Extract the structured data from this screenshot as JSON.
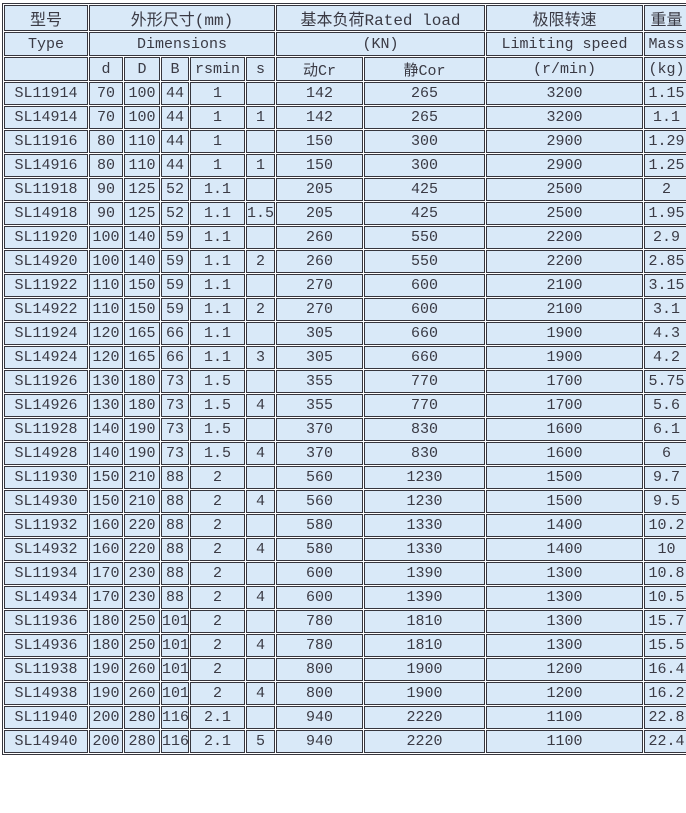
{
  "colors": {
    "page-bg": "#ffffff",
    "cell-bg": "#d9e9f8",
    "grid": "#36363e",
    "text": "#3a3a44"
  },
  "table": {
    "header": {
      "row1": [
        "型号",
        "外形尺寸(mm)",
        "基本负荷Rated load",
        "极限转速",
        "重量"
      ],
      "row2": [
        "Type",
        "Dimensions",
        "(KN)",
        "Limiting speed",
        "Mass"
      ],
      "row3": [
        "",
        "d",
        "D",
        "B",
        "rsmin",
        "s",
        "动Cr",
        "静Cor",
        "(r/min)",
        "(kg)"
      ]
    },
    "cell_names": [
      "model",
      "d",
      "D",
      "B",
      "rsmin",
      "s",
      "dynamic-load-cr",
      "static-load-cor",
      "limiting-speed",
      "mass"
    ],
    "rows": [
      [
        "SL11914",
        "70",
        "100",
        "44",
        "1",
        "",
        "142",
        "265",
        "3200",
        "1.15"
      ],
      [
        "SL14914",
        "70",
        "100",
        "44",
        "1",
        "1",
        "142",
        "265",
        "3200",
        "1.1"
      ],
      [
        "SL11916",
        "80",
        "110",
        "44",
        "1",
        "",
        "150",
        "300",
        "2900",
        "1.29"
      ],
      [
        "SL14916",
        "80",
        "110",
        "44",
        "1",
        "1",
        "150",
        "300",
        "2900",
        "1.25"
      ],
      [
        "SL11918",
        "90",
        "125",
        "52",
        "1.1",
        "",
        "205",
        "425",
        "2500",
        "2"
      ],
      [
        "SL14918",
        "90",
        "125",
        "52",
        "1.1",
        "1.5",
        "205",
        "425",
        "2500",
        "1.95"
      ],
      [
        "SL11920",
        "100",
        "140",
        "59",
        "1.1",
        "",
        "260",
        "550",
        "2200",
        "2.9"
      ],
      [
        "SL14920",
        "100",
        "140",
        "59",
        "1.1",
        "2",
        "260",
        "550",
        "2200",
        "2.85"
      ],
      [
        "SL11922",
        "110",
        "150",
        "59",
        "1.1",
        "",
        "270",
        "600",
        "2100",
        "3.15"
      ],
      [
        "SL14922",
        "110",
        "150",
        "59",
        "1.1",
        "2",
        "270",
        "600",
        "2100",
        "3.1"
      ],
      [
        "SL11924",
        "120",
        "165",
        "66",
        "1.1",
        "",
        "305",
        "660",
        "1900",
        "4.3"
      ],
      [
        "SL14924",
        "120",
        "165",
        "66",
        "1.1",
        "3",
        "305",
        "660",
        "1900",
        "4.2"
      ],
      [
        "SL11926",
        "130",
        "180",
        "73",
        "1.5",
        "",
        "355",
        "770",
        "1700",
        "5.75"
      ],
      [
        "SL14926",
        "130",
        "180",
        "73",
        "1.5",
        "4",
        "355",
        "770",
        "1700",
        "5.6"
      ],
      [
        "SL11928",
        "140",
        "190",
        "73",
        "1.5",
        "",
        "370",
        "830",
        "1600",
        "6.1"
      ],
      [
        "SL14928",
        "140",
        "190",
        "73",
        "1.5",
        "4",
        "370",
        "830",
        "1600",
        "6"
      ],
      [
        "SL11930",
        "150",
        "210",
        "88",
        "2",
        "",
        "560",
        "1230",
        "1500",
        "9.7"
      ],
      [
        "SL14930",
        "150",
        "210",
        "88",
        "2",
        "4",
        "560",
        "1230",
        "1500",
        "9.5"
      ],
      [
        "SL11932",
        "160",
        "220",
        "88",
        "2",
        "",
        "580",
        "1330",
        "1400",
        "10.2"
      ],
      [
        "SL14932",
        "160",
        "220",
        "88",
        "2",
        "4",
        "580",
        "1330",
        "1400",
        "10"
      ],
      [
        "SL11934",
        "170",
        "230",
        "88",
        "2",
        "",
        "600",
        "1390",
        "1300",
        "10.8"
      ],
      [
        "SL14934",
        "170",
        "230",
        "88",
        "2",
        "4",
        "600",
        "1390",
        "1300",
        "10.5"
      ],
      [
        "SL11936",
        "180",
        "250",
        "101",
        "2",
        "",
        "780",
        "1810",
        "1300",
        "15.7"
      ],
      [
        "SL14936",
        "180",
        "250",
        "101",
        "2",
        "4",
        "780",
        "1810",
        "1300",
        "15.5"
      ],
      [
        "SL11938",
        "190",
        "260",
        "101",
        "2",
        "",
        "800",
        "1900",
        "1200",
        "16.4"
      ],
      [
        "SL14938",
        "190",
        "260",
        "101",
        "2",
        "4",
        "800",
        "1900",
        "1200",
        "16.2"
      ],
      [
        "SL11940",
        "200",
        "280",
        "116",
        "2.1",
        "",
        "940",
        "2220",
        "1100",
        "22.8"
      ],
      [
        "SL14940",
        "200",
        "280",
        "116",
        "2.1",
        "5",
        "940",
        "2220",
        "1100",
        "22.4"
      ]
    ]
  }
}
